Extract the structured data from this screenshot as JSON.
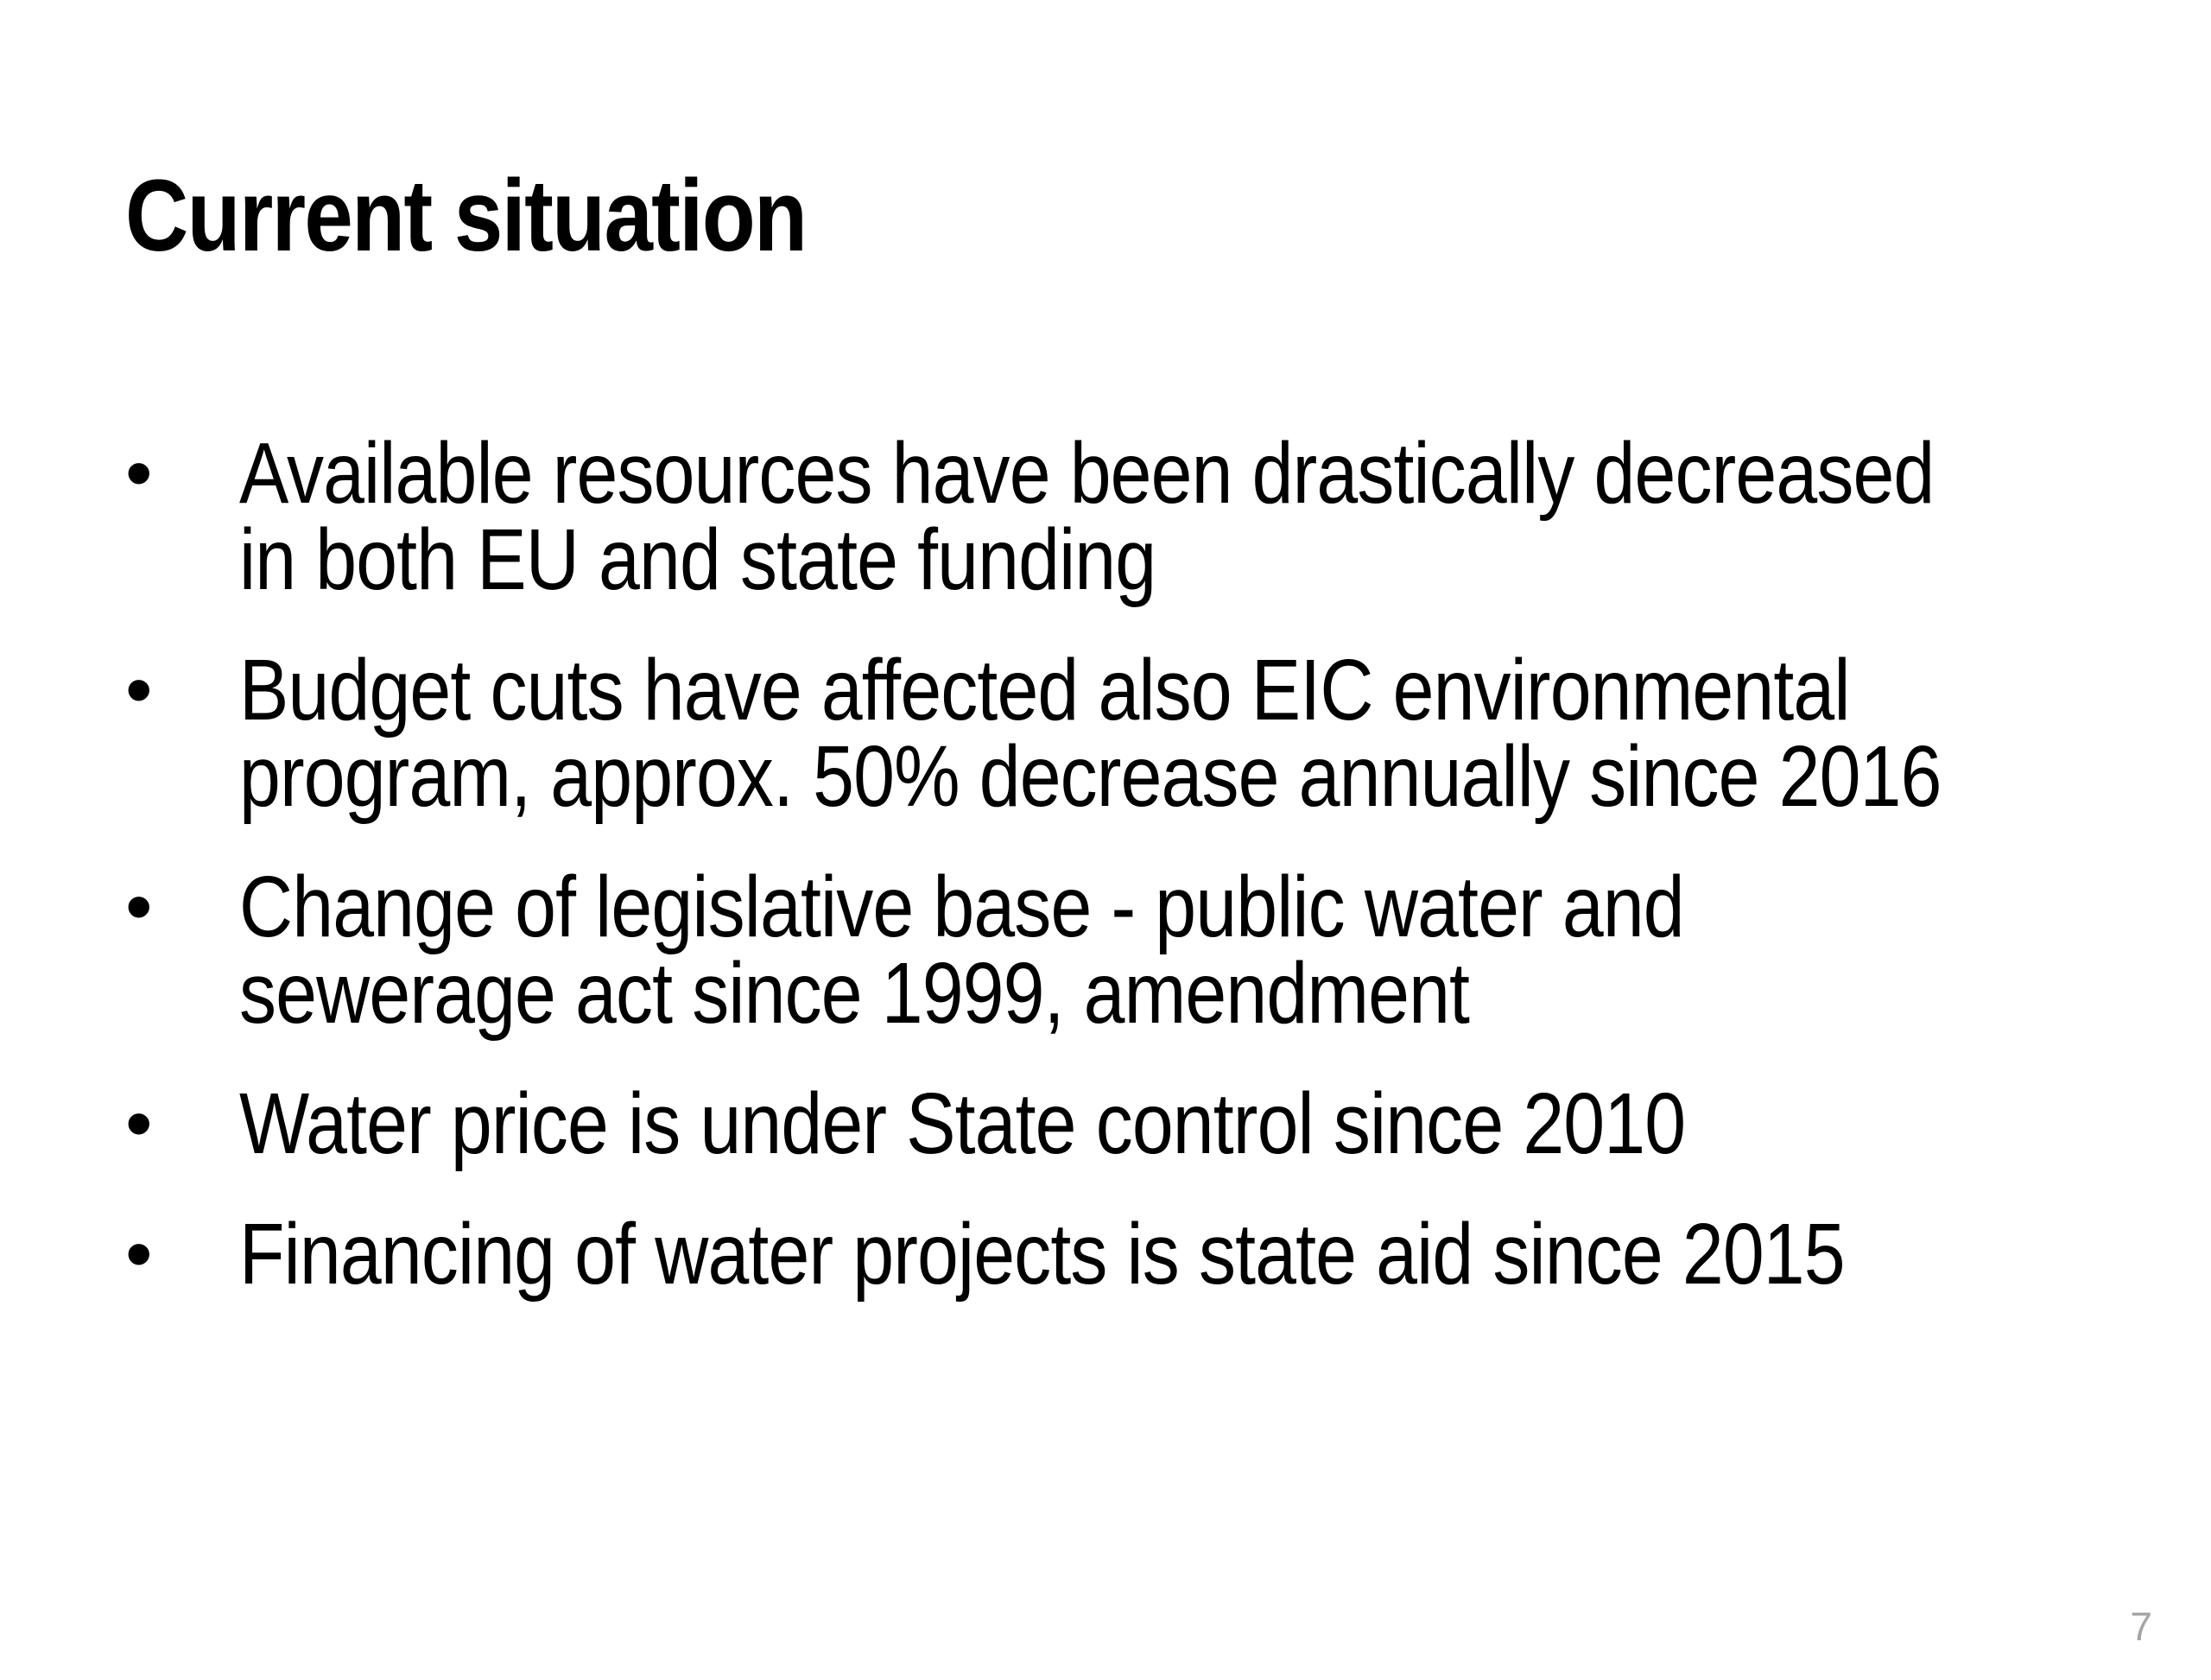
{
  "slide": {
    "title": "Current situation",
    "bullets": [
      {
        "lines": [
          "Available resources have been drastically decreased",
          "in both EU and state funding"
        ]
      },
      {
        "lines": [
          "Budget cuts have affected also EIC environmental",
          "program, approx. 50% decrease annually since 2016"
        ]
      },
      {
        "lines": [
          "Change of legislative base - public water and",
          "sewerage act since 1999, amendment"
        ]
      },
      {
        "lines": [
          "Water price is under State control since 2010"
        ]
      },
      {
        "lines": [
          "Financing of water projects is state aid since 2015"
        ]
      }
    ],
    "bullet_symbol": "•",
    "page_number": "7"
  }
}
